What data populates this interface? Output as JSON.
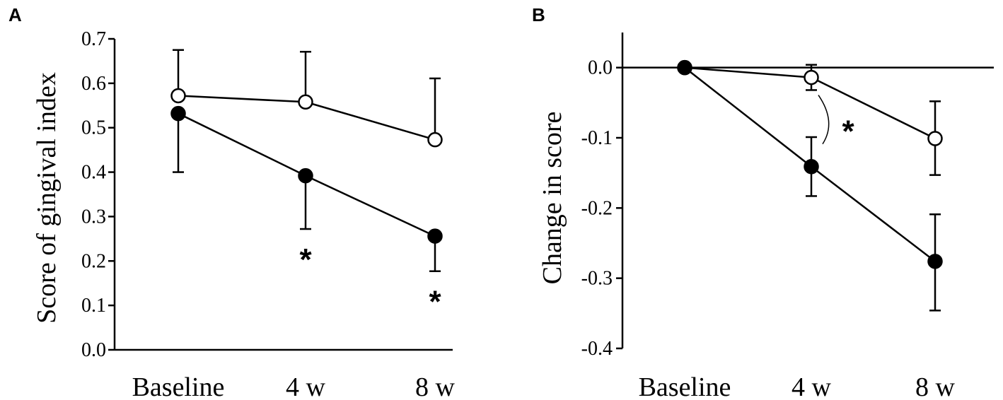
{
  "chart_data": [
    {
      "panel": "A",
      "type": "line",
      "categories": [
        "Baseline",
        "4 w",
        "8 w"
      ],
      "xlabel": "",
      "ylabel": "Score of gingival index",
      "ylim": [
        0.0,
        0.7
      ],
      "yticks": [
        "0.0",
        "0.1",
        "0.2",
        "0.3",
        "0.4",
        "0.5",
        "0.6",
        "0.7"
      ],
      "grid": false,
      "series": [
        {
          "marker": "open-circle",
          "values": [
            0.572,
            0.558,
            0.473
          ],
          "error_upper": [
            0.675,
            0.671,
            0.611
          ],
          "error_lower": [
            null,
            null,
            null
          ]
        },
        {
          "marker": "filled-circle",
          "values": [
            0.532,
            0.392,
            0.256
          ],
          "error_upper": [
            null,
            null,
            null
          ],
          "error_lower": [
            0.4,
            0.272,
            0.177
          ]
        }
      ],
      "annotations": [
        {
          "text": "*",
          "category": "4 w",
          "y": 0.215
        },
        {
          "text": "*",
          "category": "8 w",
          "y": 0.12
        }
      ]
    },
    {
      "panel": "B",
      "type": "line",
      "categories": [
        "Baseline",
        "4 w",
        "8 w"
      ],
      "xlabel": "",
      "ylabel": "Change in score",
      "ylim": [
        -0.4,
        0.05
      ],
      "yticks": [
        "0.0",
        "-0.1",
        "-0.2",
        "-0.3",
        "-0.4"
      ],
      "zero_line": true,
      "grid": false,
      "series": [
        {
          "marker": "open-circle",
          "values": [
            0.0,
            -0.014,
            -0.101
          ],
          "error_upper": [
            null,
            0.004,
            -0.048
          ],
          "error_lower": [
            null,
            -0.032,
            -0.153
          ]
        },
        {
          "marker": "filled-circle",
          "values": [
            0.0,
            -0.141,
            -0.276
          ],
          "error_upper": [
            null,
            -0.099,
            -0.209
          ],
          "error_lower": [
            null,
            -0.183,
            -0.346
          ]
        }
      ],
      "annotations": [
        {
          "text": "*",
          "bracket_between": "4 w"
        }
      ]
    }
  ]
}
